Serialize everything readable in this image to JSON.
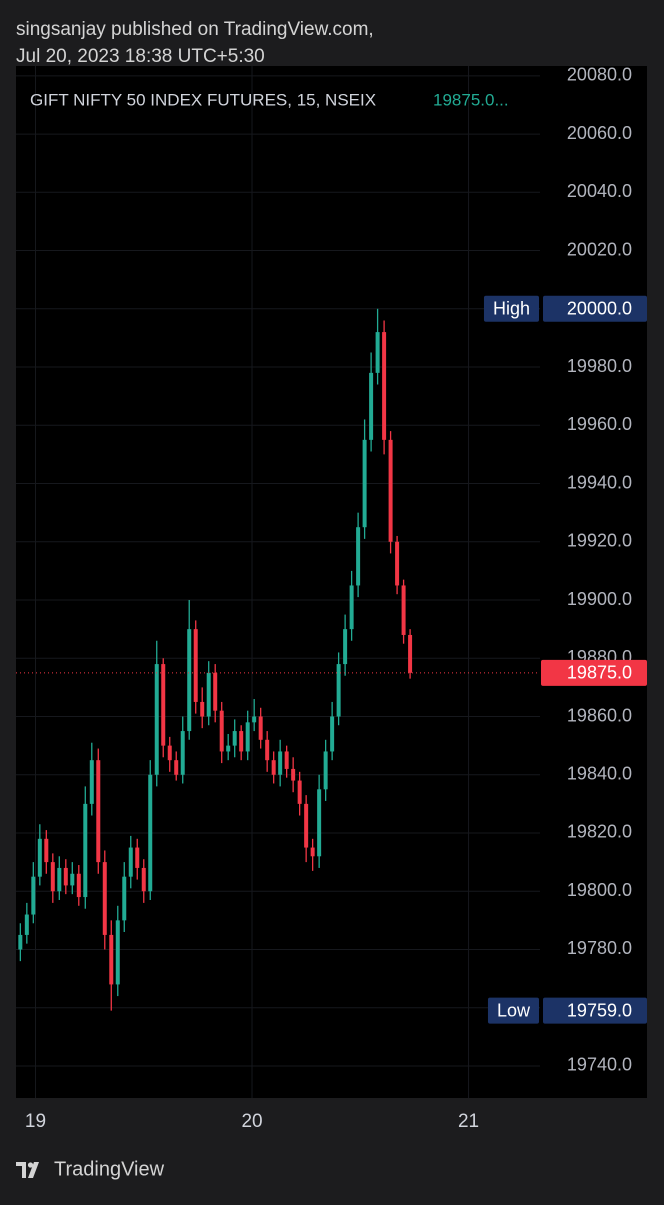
{
  "header": {
    "line1": "singsanjay published on TradingView.com,",
    "line2": "Jul 20, 2023 18:38 UTC+5:30"
  },
  "chart_data": {
    "type": "candlestick",
    "title": "GIFT NIFTY 50 INDEX FUTURES, 15, NSEIX",
    "legend_value_label": "19875.0...",
    "up_color": "#22ab94",
    "down_color": "#f23645",
    "x": [
      18.93,
      18.96,
      18.99,
      19.02,
      19.05,
      19.08,
      19.11,
      19.14,
      19.17,
      19.2,
      19.23,
      19.26,
      19.29,
      19.32,
      19.35,
      19.38,
      19.41,
      19.44,
      19.47,
      19.5,
      19.53,
      19.56,
      19.59,
      19.62,
      19.65,
      19.68,
      19.71,
      19.74,
      19.77,
      19.8,
      19.83,
      19.86,
      19.89,
      19.92,
      19.95,
      19.98,
      20.01,
      20.04,
      20.07,
      20.1,
      20.13,
      20.16,
      20.19,
      20.22,
      20.25,
      20.28,
      20.31,
      20.34,
      20.37,
      20.4,
      20.43,
      20.46,
      20.49,
      20.52,
      20.55,
      20.58,
      20.61,
      20.64,
      20.67,
      20.7,
      20.73
    ],
    "open": [
      19780,
      19785,
      19792,
      19805,
      19818,
      19810,
      19800,
      19808,
      19802,
      19806,
      19798,
      19830,
      19845,
      19810,
      19785,
      19768,
      19790,
      19805,
      19815,
      19808,
      19800,
      19840,
      19878,
      19850,
      19845,
      19840,
      19855,
      19890,
      19865,
      19860,
      19875,
      19862,
      19848,
      19850,
      19855,
      19848,
      19858,
      19860,
      19852,
      19845,
      19840,
      19848,
      19842,
      19838,
      19830,
      19815,
      19812,
      19835,
      19848,
      19860,
      19878,
      19890,
      19905,
      19925,
      19955,
      19978,
      19992,
      19955,
      19920,
      19905,
      19888
    ],
    "high": [
      19789,
      19796,
      19810,
      19823,
      19821,
      19813,
      19812,
      19811,
      19810,
      19809,
      19836,
      19851,
      19849,
      19814,
      19790,
      19795,
      19810,
      19819,
      19818,
      19811,
      19845,
      19886,
      19880,
      19853,
      19848,
      19860,
      19900,
      19893,
      19870,
      19879,
      19878,
      19865,
      19854,
      19859,
      19857,
      19862,
      19866,
      19863,
      19855,
      19848,
      19852,
      19850,
      19846,
      19841,
      19833,
      19818,
      19840,
      19852,
      19865,
      19882,
      19895,
      19910,
      19930,
      19962,
      19985,
      20000,
      19996,
      19958,
      19922,
      19907,
      19890
    ],
    "low": [
      19776,
      19782,
      19789,
      19802,
      19806,
      19796,
      19797,
      19799,
      19799,
      19795,
      19794,
      19826,
      19806,
      19780,
      19759,
      19764,
      19786,
      19801,
      19804,
      19796,
      19797,
      19836,
      19846,
      19841,
      19838,
      19837,
      19852,
      19861,
      19856,
      19857,
      19858,
      19844,
      19845,
      19846,
      19845,
      19845,
      19855,
      19849,
      19841,
      19837,
      19836,
      19839,
      19834,
      19826,
      19810,
      19807,
      19808,
      19831,
      19845,
      19857,
      19874,
      19886,
      19901,
      19921,
      19951,
      19974,
      19950,
      19916,
      19902,
      19885,
      19873
    ],
    "close": [
      19785,
      19792,
      19805,
      19818,
      19810,
      19800,
      19808,
      19802,
      19806,
      19798,
      19830,
      19845,
      19810,
      19785,
      19768,
      19790,
      19805,
      19815,
      19808,
      19800,
      19840,
      19878,
      19850,
      19845,
      19840,
      19855,
      19890,
      19865,
      19860,
      19875,
      19862,
      19848,
      19850,
      19855,
      19848,
      19858,
      19860,
      19852,
      19845,
      19840,
      19848,
      19842,
      19838,
      19830,
      19815,
      19812,
      19835,
      19848,
      19860,
      19878,
      19890,
      19905,
      19925,
      19955,
      19978,
      19992,
      19955,
      19920,
      19905,
      19888,
      19875
    ],
    "xlim": [
      18.91,
      21.33
    ],
    "xticks": [
      19,
      20,
      21
    ],
    "ylim": [
      19729,
      20082
    ],
    "yticks": [
      {
        "value": 19740,
        "label": "19740.0"
      },
      {
        "value": 19760,
        "label": "19760.0"
      },
      {
        "value": 19780,
        "label": "19780.0"
      },
      {
        "value": 19800,
        "label": "19800.0"
      },
      {
        "value": 19820,
        "label": "19820.0"
      },
      {
        "value": 19840,
        "label": "19840.0"
      },
      {
        "value": 19860,
        "label": "19860.0"
      },
      {
        "value": 19880,
        "label": "19880.0"
      },
      {
        "value": 19900,
        "label": "19900.0"
      },
      {
        "value": 19920,
        "label": "19920.0"
      },
      {
        "value": 19940,
        "label": "19940.0"
      },
      {
        "value": 19960,
        "label": "19960.0"
      },
      {
        "value": 19980,
        "label": "19980.0"
      },
      {
        "value": 20000,
        "label": "20000.0"
      },
      {
        "value": 20020,
        "label": "20020.0"
      },
      {
        "value": 20040,
        "label": "20040.0"
      },
      {
        "value": 20060,
        "label": "20060.0"
      },
      {
        "value": 20080,
        "label": "20080.0"
      }
    ],
    "grid": true,
    "markers": [
      {
        "name": "High",
        "value": 20000,
        "value_label": "20000.0",
        "color": "#1c3366"
      },
      {
        "name": "Low",
        "value": 19759,
        "value_label": "19759.0",
        "color": "#1c3366"
      }
    ],
    "last_price": 19875,
    "last_price_label": "19875.0",
    "last_price_color": "#f23645"
  },
  "footer": {
    "brand": "TradingView"
  }
}
